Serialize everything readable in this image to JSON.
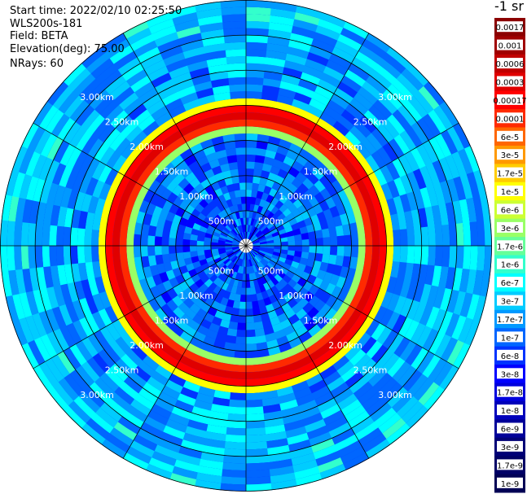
{
  "header": {
    "start_time": "Start time: 2022/02/10 02:25:50",
    "instrument": "WLS200s-181",
    "field": "Field: BETA",
    "elevation": "Elevation(deg): 75.00",
    "nrays": "NRays: 60"
  },
  "colorbar": {
    "title": "-1 sr",
    "labels": [
      "0.0017",
      "0.001",
      "0.0006",
      "0.0003",
      "0.00017",
      "0.0001",
      "6e-5",
      "3e-5",
      "1.7e-5",
      "1e-5",
      "6e-6",
      "3e-6",
      "1.7e-6",
      "1e-6",
      "6e-7",
      "3e-7",
      "1.7e-7",
      "1e-7",
      "6e-8",
      "3e-8",
      "1.7e-8",
      "1e-8",
      "6e-9",
      "3e-9",
      "1.7e-9",
      "1e-9"
    ],
    "colors": [
      "#8b0000",
      "#a00000",
      "#c00000",
      "#e00000",
      "#ff0000",
      "#ff2a00",
      "#ff6600",
      "#ff9900",
      "#ffcc00",
      "#ffff00",
      "#ccff33",
      "#99ff66",
      "#66ff99",
      "#33ffcc",
      "#00ffff",
      "#00ccff",
      "#0099ff",
      "#0066ff",
      "#0033ff",
      "#0000ff",
      "#0000dd",
      "#0000bb",
      "#000099",
      "#000077",
      "#000066",
      "#000055"
    ]
  },
  "chart_data": {
    "type": "heatmap",
    "projection": "polar (plan view)",
    "n_rays": 60,
    "range_rings": [
      {
        "label": "500m",
        "range_m": 500
      },
      {
        "label": "1.00km",
        "range_m": 1000
      },
      {
        "label": "1.50km",
        "range_m": 1500
      },
      {
        "label": "2.00km",
        "range_m": 2000
      },
      {
        "label": "2.50km",
        "range_m": 2500
      },
      {
        "label": "3.00km",
        "range_m": 3000
      }
    ],
    "max_range_m": 3500,
    "features": [
      {
        "description": "high backscatter layer ring",
        "range_start_m": 1650,
        "range_end_m": 2100,
        "peak_value": 0.0003
      },
      {
        "description": "background",
        "value_range": [
          1e-09,
          3e-08
        ]
      }
    ]
  }
}
